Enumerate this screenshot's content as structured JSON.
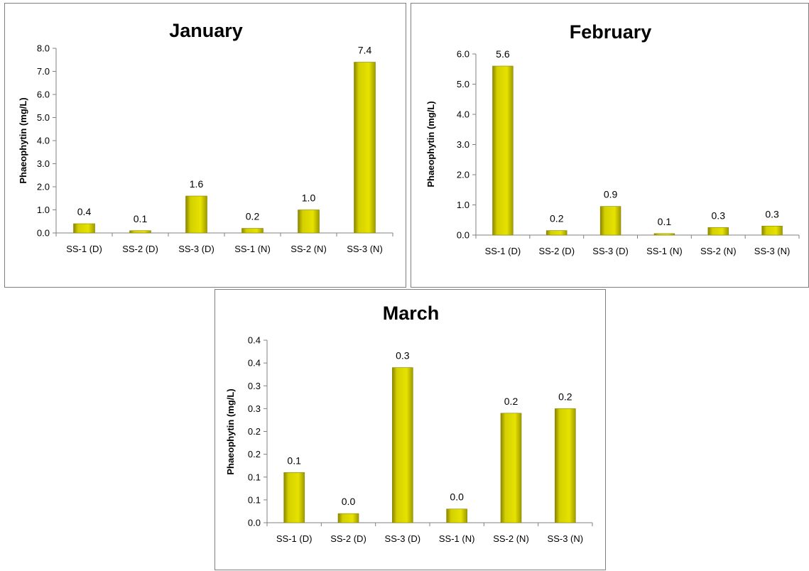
{
  "chart_data": [
    {
      "type": "bar",
      "title": "January",
      "ylabel": "Phaeophytin (mg/L)",
      "categories": [
        "SS-1 (D)",
        "SS-2 (D)",
        "SS-3 (D)",
        "SS-1 (N)",
        "SS-2 (N)",
        "SS-3 (N)"
      ],
      "values": [
        0.4,
        0.1,
        1.6,
        0.2,
        1.0,
        7.4
      ],
      "data_labels": [
        "0.4",
        "0.1",
        "1.6",
        "0.2",
        "1.0",
        "7.4"
      ],
      "ylim": [
        0,
        8
      ],
      "yticks": [
        0,
        1,
        2,
        3,
        4,
        5,
        6,
        7,
        8
      ],
      "ytick_labels": [
        "0.0",
        "1.0",
        "2.0",
        "3.0",
        "4.0",
        "5.0",
        "6.0",
        "7.0",
        "8.0"
      ],
      "bar_color": "#d4d000",
      "grid": false,
      "legend": "none"
    },
    {
      "type": "bar",
      "title": "February",
      "ylabel": "Phaeophytin (mg/L)",
      "categories": [
        "SS-1 (D)",
        "SS-2 (D)",
        "SS-3 (D)",
        "SS-1 (N)",
        "SS-2 (N)",
        "SS-3 (N)"
      ],
      "values": [
        5.6,
        0.15,
        0.95,
        0.05,
        0.25,
        0.3
      ],
      "data_labels": [
        "5.6",
        "0.2",
        "0.9",
        "0.1",
        "0.3",
        "0.3"
      ],
      "ylim": [
        0,
        6
      ],
      "yticks": [
        0,
        1,
        2,
        3,
        4,
        5,
        6
      ],
      "ytick_labels": [
        "0.0",
        "1.0",
        "2.0",
        "3.0",
        "4.0",
        "5.0",
        "6.0"
      ],
      "bar_color": "#d4d000",
      "grid": false,
      "legend": "none"
    },
    {
      "type": "bar",
      "title": "March",
      "ylabel": "Phaeophytin (mg/L)",
      "categories": [
        "SS-1 (D)",
        "SS-2 (D)",
        "SS-3 (D)",
        "SS-1 (N)",
        "SS-2 (N)",
        "SS-3 (N)"
      ],
      "values": [
        0.11,
        0.02,
        0.34,
        0.03,
        0.24,
        0.25
      ],
      "data_labels": [
        "0.1",
        "0.0",
        "0.3",
        "0.0",
        "0.2",
        "0.2"
      ],
      "ylim": [
        0,
        0.4
      ],
      "yticks": [
        0,
        0.05,
        0.1,
        0.15,
        0.2,
        0.25,
        0.3,
        0.35,
        0.4
      ],
      "ytick_labels": [
        "0.0",
        "0.1",
        "0.1",
        "0.2",
        "0.2",
        "0.3",
        "0.3",
        "0.4",
        "0.4"
      ],
      "bar_color": "#d4d000",
      "grid": false,
      "legend": "none"
    }
  ]
}
